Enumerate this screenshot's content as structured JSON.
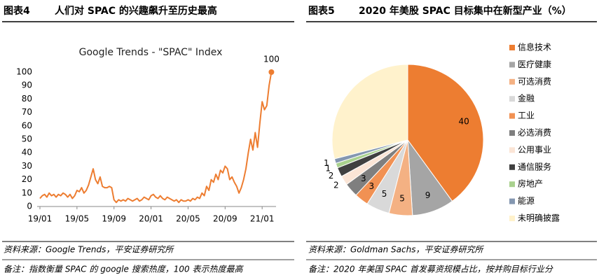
{
  "panels": [
    {
      "label": "图表4",
      "heading": "人们对 SPAC 的兴趣飙升至历史最高",
      "source": "资料来源：Google Trends，平安证券研究所",
      "note": "备注：指数衡量 SPAC 的 google 搜索热度，100 表示热度最高"
    },
    {
      "label": "图表5",
      "heading": "2020 年美股 SPAC 目标集中在新型产业（%）",
      "source": "资料来源：Goldman Sachs，平安证券研究所",
      "note": "备注：2020 年美国 SPAC 首发募资规模占比，按并购目标行业分"
    }
  ],
  "chart_data": [
    {
      "type": "line",
      "title": "Google Trends - \"SPAC\" Index",
      "annotation": "100",
      "x": [
        0,
        0.25,
        0.5,
        0.75,
        1,
        1.25,
        1.5,
        1.75,
        2,
        2.25,
        2.5,
        2.75,
        3,
        3.25,
        3.5,
        3.75,
        4,
        4.25,
        4.5,
        4.75,
        5,
        5.25,
        5.5,
        5.75,
        6,
        6.25,
        6.5,
        6.75,
        7,
        7.25,
        7.5,
        7.75,
        8,
        8.25,
        8.5,
        8.75,
        9,
        9.25,
        9.5,
        9.75,
        10,
        10.25,
        10.5,
        10.75,
        11,
        11.25,
        11.5,
        11.75,
        12,
        12.25,
        12.5,
        12.75,
        13,
        13.25,
        13.5,
        13.75,
        14,
        14.25,
        14.5,
        14.75,
        15,
        15.25,
        15.5,
        15.75,
        16,
        16.25,
        16.5,
        16.75,
        17,
        17.25,
        17.5,
        17.75,
        18,
        18.25,
        18.5,
        18.75,
        19,
        19.25,
        19.5,
        19.75,
        20,
        20.25,
        20.5,
        20.75,
        21,
        21.25,
        21.5,
        21.75,
        22,
        22.25,
        22.5,
        22.75,
        23,
        23.25,
        23.5,
        23.75,
        24,
        24.25,
        24.5,
        24.75,
        25
      ],
      "series": [
        {
          "color": "#ED7D31",
          "values": [
            6,
            8,
            9,
            7,
            10,
            8,
            9,
            7,
            9,
            8,
            10,
            9,
            7,
            9,
            6,
            8,
            12,
            11,
            14,
            10,
            12,
            16,
            22,
            28,
            20,
            17,
            22,
            15,
            14,
            14,
            15,
            14,
            5,
            3,
            5,
            4,
            5,
            4,
            6,
            5,
            4,
            5,
            6,
            4,
            5,
            7,
            6,
            5,
            8,
            9,
            7,
            6,
            8,
            6,
            5,
            7,
            6,
            5,
            4,
            5,
            3,
            5,
            4,
            4,
            5,
            4,
            6,
            5,
            7,
            6,
            10,
            8,
            15,
            12,
            20,
            18,
            24,
            20,
            27,
            25,
            30,
            28,
            20,
            22,
            18,
            15,
            10,
            14,
            20,
            28,
            40,
            50,
            42,
            55,
            44,
            62,
            78,
            72,
            75,
            90,
            100
          ]
        }
      ],
      "xlim": [
        0,
        25.5
      ],
      "xticks": [
        {
          "value": 0,
          "label": "19/01"
        },
        {
          "value": 4,
          "label": "19/05"
        },
        {
          "value": 8,
          "label": "19/09"
        },
        {
          "value": 12,
          "label": "20/01"
        },
        {
          "value": 16,
          "label": "20/05"
        },
        {
          "value": 20,
          "label": "20/09"
        },
        {
          "value": 24,
          "label": "21/01"
        }
      ],
      "ylim": [
        0,
        100
      ],
      "yticks": [
        0,
        10,
        20,
        30,
        40,
        50,
        60,
        70,
        80,
        90,
        100
      ]
    },
    {
      "type": "pie",
      "categories": [
        "信息技术",
        "医疗健康",
        "可选消费",
        "金融",
        "工业",
        "必选消费",
        "公用事业",
        "通信服务",
        "房地产",
        "能源",
        "未明确披露"
      ],
      "values": [
        40,
        9,
        5,
        5,
        3,
        3,
        2,
        2,
        1,
        1,
        29
      ],
      "value_labels": [
        "40",
        "9",
        "5",
        "5",
        "3",
        "3",
        "2",
        "2",
        "1",
        "1",
        null
      ],
      "colors": [
        "#ED7D31",
        "#A5A5A5",
        "#F4B183",
        "#D9D9D9",
        "#F19153",
        "#7F7F7F",
        "#FBE5D6",
        "#404040",
        "#A9D18E",
        "#8497B0",
        "#FFF2CC"
      ]
    }
  ]
}
